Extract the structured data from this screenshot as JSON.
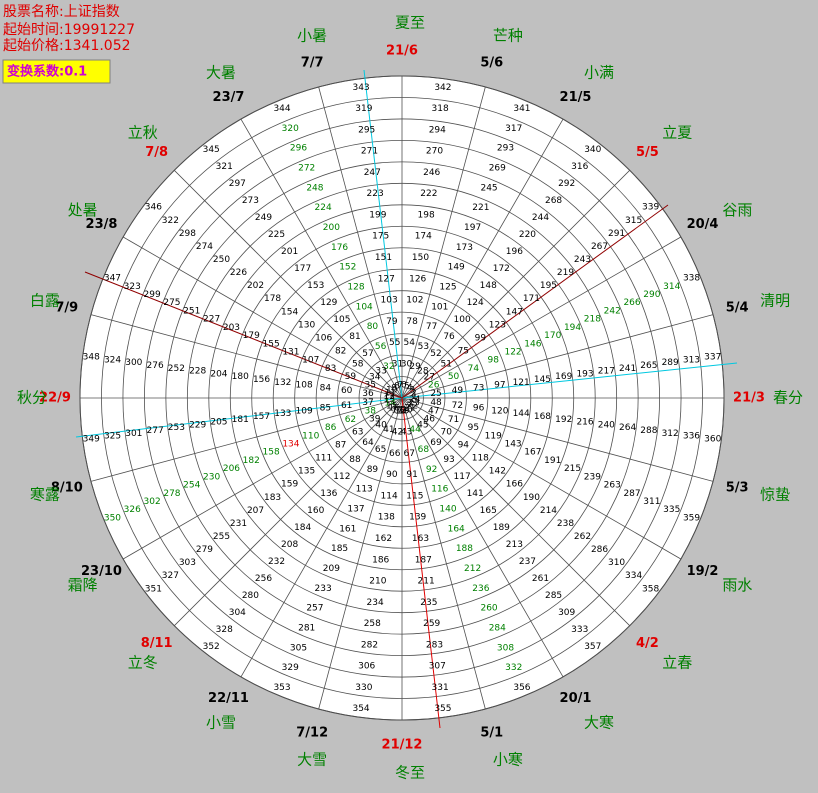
{
  "header": {
    "stock_name": "股票名称:上证指数",
    "start_time": "起始时间:19991227",
    "start_price": "起始价格:1341.052",
    "coefficient": "变换系数:0.1"
  },
  "wheel": {
    "rings": [
      [
        1,
        2,
        3,
        4,
        5,
        6,
        7,
        8,
        9,
        10,
        11,
        12,
        13,
        14,
        15,
        16,
        17,
        18,
        19,
        20,
        21,
        22,
        23,
        24
      ],
      [
        25,
        26,
        27,
        28,
        29,
        30,
        31,
        32,
        33,
        34,
        35,
        36,
        37,
        38,
        39,
        40,
        41,
        42,
        43,
        44,
        45,
        46,
        47,
        48
      ],
      [
        49,
        50,
        51,
        52,
        53,
        54,
        55,
        56,
        57,
        58,
        59,
        60,
        61,
        62,
        63,
        64,
        65,
        66,
        67,
        68,
        69,
        70,
        71,
        72
      ],
      [
        73,
        74,
        75,
        76,
        77,
        78,
        79,
        80,
        81,
        82,
        83,
        84,
        85,
        86,
        87,
        88,
        89,
        90,
        91,
        92,
        93,
        94,
        95,
        96
      ],
      [
        97,
        98,
        99,
        100,
        101,
        102,
        103,
        104,
        105,
        106,
        107,
        108,
        109,
        110,
        111,
        112,
        113,
        114,
        115,
        116,
        117,
        118,
        119,
        120
      ],
      [
        121,
        122,
        123,
        124,
        125,
        126,
        127,
        128,
        129,
        130,
        131,
        132,
        133,
        134,
        135,
        136,
        137,
        138,
        139,
        140,
        141,
        142,
        143,
        144
      ],
      [
        145,
        146,
        147,
        148,
        149,
        150,
        151,
        152,
        153,
        154,
        155,
        156,
        157,
        158,
        159,
        160,
        161,
        162,
        163,
        164,
        165,
        166,
        167,
        168
      ],
      [
        169,
        170,
        171,
        172,
        173,
        174,
        175,
        176,
        177,
        178,
        179,
        180,
        181,
        182,
        183,
        184,
        185,
        186,
        187,
        188,
        189,
        190,
        191,
        192
      ],
      [
        193,
        194,
        195,
        196,
        197,
        198,
        199,
        200,
        201,
        202,
        203,
        204,
        205,
        206,
        207,
        208,
        209,
        210,
        211,
        212,
        213,
        214,
        215,
        216
      ],
      [
        217,
        218,
        219,
        220,
        221,
        222,
        223,
        224,
        225,
        226,
        227,
        228,
        229,
        230,
        231,
        232,
        233,
        234,
        235,
        236,
        237,
        238,
        239,
        240
      ],
      [
        241,
        242,
        243,
        244,
        245,
        246,
        247,
        248,
        249,
        250,
        251,
        252,
        253,
        254,
        255,
        256,
        257,
        258,
        259,
        260,
        261,
        262,
        263,
        264
      ],
      [
        265,
        266,
        267,
        268,
        269,
        270,
        271,
        272,
        273,
        274,
        275,
        276,
        277,
        278,
        279,
        280,
        281,
        282,
        283,
        284,
        285,
        286,
        287,
        288
      ],
      [
        289,
        290,
        291,
        292,
        293,
        294,
        295,
        296,
        297,
        298,
        299,
        300,
        301,
        302,
        303,
        304,
        305,
        306,
        307,
        308,
        309,
        310,
        311,
        312
      ],
      [
        313,
        314,
        315,
        316,
        317,
        318,
        319,
        320,
        321,
        322,
        323,
        324,
        325,
        326,
        327,
        328,
        329,
        330,
        331,
        332,
        333,
        334,
        335,
        336
      ],
      [
        337,
        338,
        339,
        340,
        341,
        342,
        343,
        344,
        345,
        346,
        347,
        348,
        349,
        350,
        351,
        352,
        353,
        354,
        355,
        356,
        357,
        358,
        359,
        360
      ]
    ],
    "green_numbers": [
      14,
      26,
      50,
      74,
      98,
      122,
      146,
      170,
      194,
      218,
      242,
      266,
      290,
      314,
      32,
      56,
      80,
      104,
      128,
      152,
      176,
      200,
      224,
      248,
      272,
      296,
      320,
      38,
      62,
      86,
      110,
      158,
      182,
      206,
      230,
      254,
      278,
      302,
      326,
      350,
      44,
      68,
      92,
      116,
      140,
      164,
      188,
      212,
      236,
      260,
      284,
      308,
      332
    ],
    "green_color": "#008000",
    "red_numbers": [
      134
    ],
    "red_color": "#e00000"
  },
  "dates": [
    {
      "label": "21/6",
      "color": "#e00000"
    },
    {
      "label": "5/6",
      "color": "#000000"
    },
    {
      "label": "21/5",
      "color": "#000000"
    },
    {
      "label": "5/5",
      "color": "#e00000"
    },
    {
      "label": "20/4",
      "color": "#000000"
    },
    {
      "label": "5/4",
      "color": "#000000"
    },
    {
      "label": "21/3",
      "color": "#e00000"
    },
    {
      "label": "5/3",
      "color": "#000000"
    },
    {
      "label": "19/2",
      "color": "#000000"
    },
    {
      "label": "4/2",
      "color": "#e00000"
    },
    {
      "label": "20/1",
      "color": "#000000"
    },
    {
      "label": "5/1",
      "color": "#000000"
    },
    {
      "label": "21/12",
      "color": "#e00000"
    },
    {
      "label": "7/12",
      "color": "#000000"
    },
    {
      "label": "22/11",
      "color": "#000000"
    },
    {
      "label": "8/11",
      "color": "#e00000"
    },
    {
      "label": "23/10",
      "color": "#000000"
    },
    {
      "label": "8/10",
      "color": "#000000"
    },
    {
      "label": "22/9",
      "color": "#e00000"
    },
    {
      "label": "7/9",
      "color": "#000000"
    },
    {
      "label": "23/8",
      "color": "#000000"
    },
    {
      "label": "7/8",
      "color": "#e00000"
    },
    {
      "label": "23/7",
      "color": "#000000"
    },
    {
      "label": "7/7",
      "color": "#000000"
    }
  ],
  "solar_terms": [
    "夏至",
    "芒种",
    "小满",
    "立夏",
    "谷雨",
    "清明",
    "春分",
    "惊蛰",
    "雨水",
    "立春",
    "大寒",
    "小寒",
    "冬至",
    "大雪",
    "小雪",
    "立冬",
    "霜降",
    "寒露",
    "秋分",
    "白露",
    "处暑",
    "立秋",
    "大暑",
    "小暑"
  ]
}
